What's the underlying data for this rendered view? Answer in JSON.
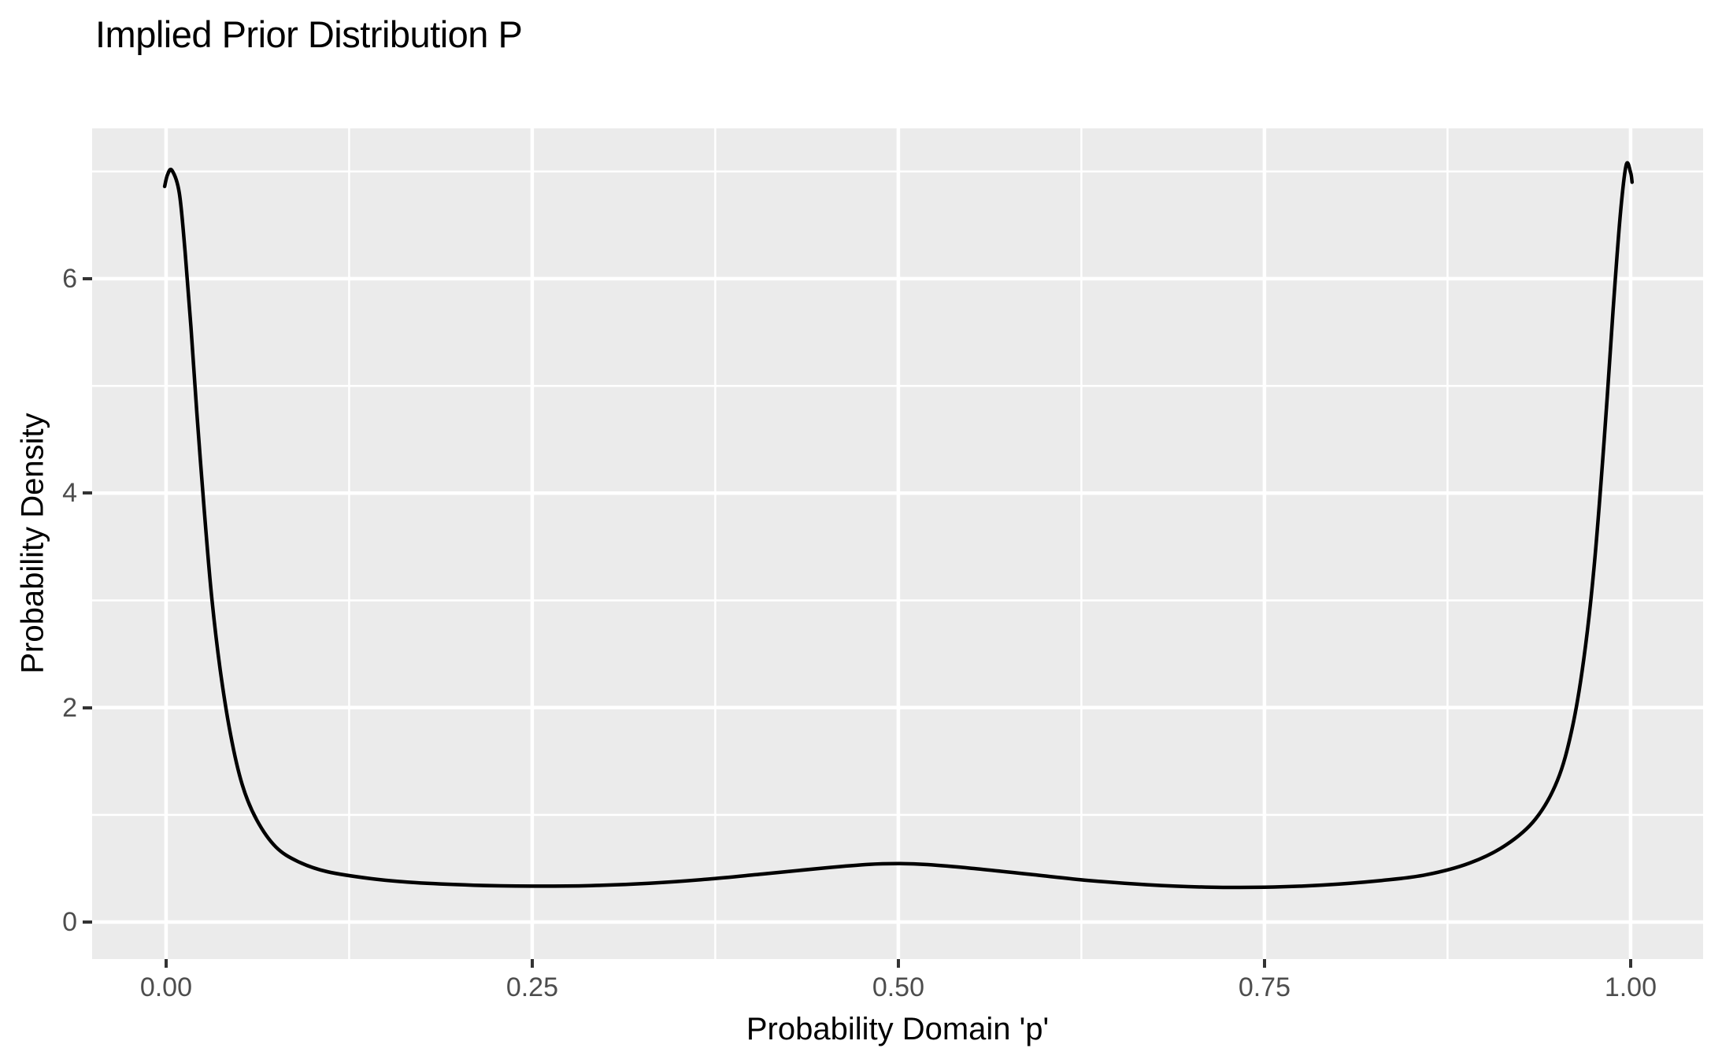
{
  "figure": {
    "background": "#FFFFFF"
  },
  "chart_data": {
    "type": "line",
    "subtype": "density-curve",
    "title": "Implied Prior Distribution P",
    "xlabel": "Probability Domain 'p'",
    "ylabel": "Probability Density",
    "legend": "none",
    "grid": "major-and-minor-white-on-grey-panel",
    "x_axis": {
      "tick_values": [
        0,
        0.25,
        0.5,
        0.75,
        1
      ],
      "tick_labels": [
        "0.00",
        "0.25",
        "0.50",
        "0.75",
        "1.00"
      ],
      "minor_values": [
        0.125,
        0.375,
        0.625,
        0.875
      ],
      "limits": [
        -0.0505,
        1.0495
      ]
    },
    "y_axis": {
      "tick_values": [
        0,
        2,
        4,
        6
      ],
      "tick_labels": [
        "0",
        "2",
        "4",
        "6"
      ],
      "minor_values": [
        1,
        3,
        5,
        7
      ],
      "limits": [
        -0.345,
        7.402
      ]
    },
    "style": {
      "panel_background": "#EBEBEB",
      "grid_color": "#FFFFFF",
      "line_color": "#000000",
      "tick_label_color": "#4D4D4D",
      "tick_mark_color": "#333333",
      "title_color": "#000000",
      "major_grid_width": 4.5,
      "minor_grid_width": 2.5,
      "curve_width": 4.5
    },
    "series": [
      {
        "name": "implied_prior_density",
        "points": [
          [
            -0.001,
            6.86
          ],
          [
            0.001,
            6.97
          ],
          [
            0.004,
            7.01
          ],
          [
            0.009,
            6.8
          ],
          [
            0.013,
            6.25
          ],
          [
            0.017,
            5.55
          ],
          [
            0.021,
            4.75
          ],
          [
            0.026,
            3.85
          ],
          [
            0.031,
            3.05
          ],
          [
            0.037,
            2.35
          ],
          [
            0.044,
            1.75
          ],
          [
            0.052,
            1.28
          ],
          [
            0.062,
            0.95
          ],
          [
            0.075,
            0.7
          ],
          [
            0.09,
            0.565
          ],
          [
            0.11,
            0.47
          ],
          [
            0.14,
            0.405
          ],
          [
            0.17,
            0.368
          ],
          [
            0.21,
            0.344
          ],
          [
            0.25,
            0.335
          ],
          [
            0.29,
            0.34
          ],
          [
            0.33,
            0.362
          ],
          [
            0.37,
            0.4
          ],
          [
            0.41,
            0.452
          ],
          [
            0.45,
            0.505
          ],
          [
            0.48,
            0.538
          ],
          [
            0.5,
            0.545
          ],
          [
            0.52,
            0.536
          ],
          [
            0.55,
            0.502
          ],
          [
            0.59,
            0.445
          ],
          [
            0.63,
            0.388
          ],
          [
            0.67,
            0.348
          ],
          [
            0.71,
            0.326
          ],
          [
            0.75,
            0.325
          ],
          [
            0.79,
            0.345
          ],
          [
            0.83,
            0.388
          ],
          [
            0.86,
            0.44
          ],
          [
            0.89,
            0.55
          ],
          [
            0.915,
            0.72
          ],
          [
            0.935,
            0.96
          ],
          [
            0.95,
            1.32
          ],
          [
            0.96,
            1.8
          ],
          [
            0.968,
            2.45
          ],
          [
            0.975,
            3.3
          ],
          [
            0.982,
            4.5
          ],
          [
            0.988,
            5.7
          ],
          [
            0.993,
            6.6
          ],
          [
            0.997,
            7.06
          ],
          [
            1.0,
            6.99
          ],
          [
            1.001,
            6.9
          ]
        ]
      }
    ]
  }
}
